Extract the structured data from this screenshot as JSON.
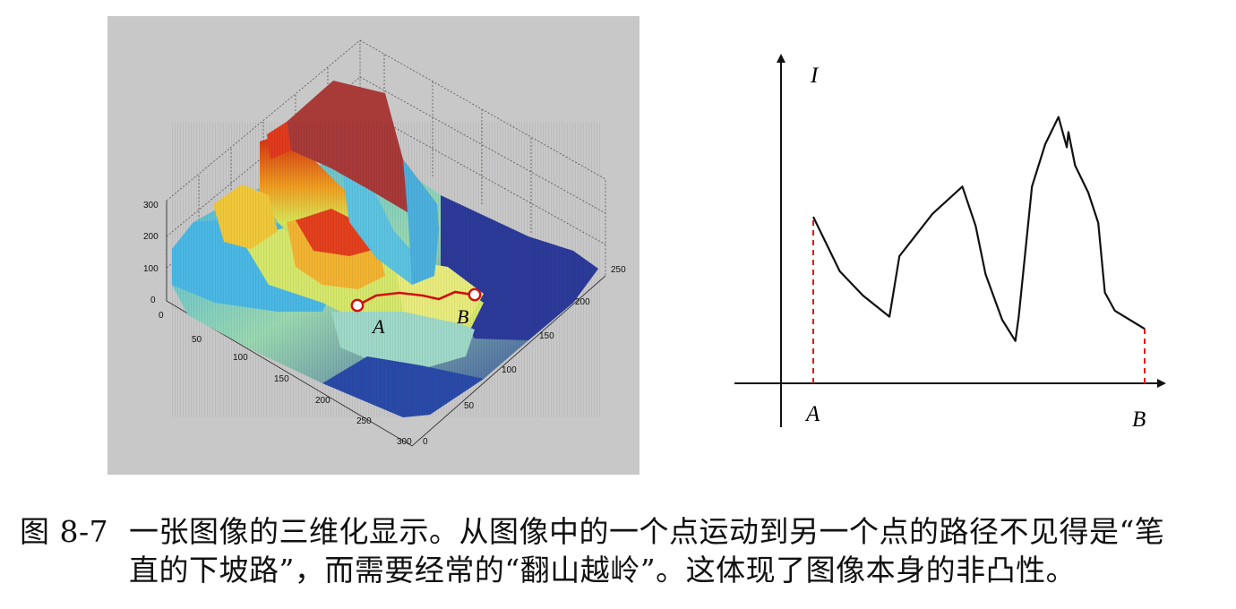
{
  "figure": {
    "left_plot": {
      "background": "#c8c8c8",
      "z_ticks": [
        "0",
        "100",
        "200",
        "300"
      ],
      "x_ticks": [
        "0",
        "50",
        "100",
        "150",
        "200",
        "250",
        "300"
      ],
      "y_ticks": [
        "0",
        "50",
        "100",
        "150",
        "200",
        "250"
      ],
      "point_a_label": "A",
      "point_b_label": "B",
      "path_color": "#d01010"
    },
    "right_plot": {
      "y_axis_label": "I",
      "x_start_label": "A",
      "x_end_label": "B",
      "guide_color": "#e01818"
    }
  },
  "chart_data": {
    "type": "line",
    "x": [
      0,
      0.08,
      0.15,
      0.23,
      0.26,
      0.36,
      0.45,
      0.49,
      0.52,
      0.57,
      0.61,
      0.62,
      0.66,
      0.7,
      0.74,
      0.765,
      0.77,
      0.79,
      0.83,
      0.86,
      0.88,
      0.91,
      1.0
    ],
    "values": [
      0.55,
      0.37,
      0.29,
      0.22,
      0.42,
      0.56,
      0.65,
      0.52,
      0.36,
      0.21,
      0.14,
      0.22,
      0.65,
      0.79,
      0.88,
      0.78,
      0.83,
      0.72,
      0.63,
      0.53,
      0.3,
      0.24,
      0.18
    ],
    "xlabel": "",
    "ylabel": "I",
    "x_tick_labels": [
      "A",
      "B"
    ]
  },
  "caption": {
    "number": "图 8-7",
    "line1": "一张图像的三维化显示。从图像中的一个点运动到另一个点的路径不见得是“笔",
    "line2": "直的下坡路”，而需要经常的“翻山越岭”。这体现了图像本身的非凸性。"
  }
}
